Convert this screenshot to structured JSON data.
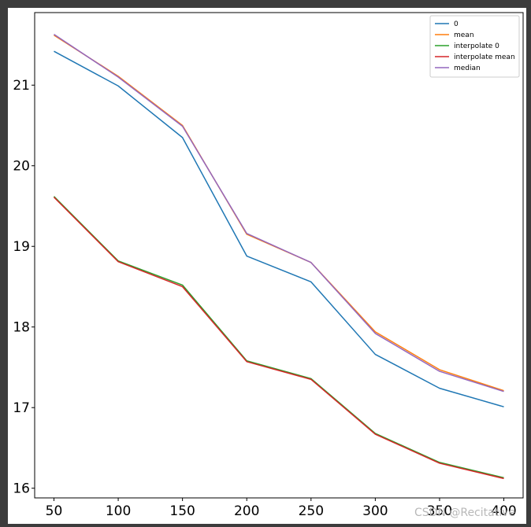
{
  "chart_data": {
    "type": "line",
    "title": "",
    "xlabel": "",
    "ylabel": "",
    "x": [
      50,
      100,
      150,
      200,
      250,
      300,
      350,
      400
    ],
    "xticks": [
      "50",
      "100",
      "150",
      "200",
      "250",
      "300",
      "350",
      "400"
    ],
    "yticks": [
      "16",
      "17",
      "18",
      "19",
      "20",
      "21"
    ],
    "xlim": [
      35,
      415
    ],
    "ylim": [
      15.88,
      21.9
    ],
    "grid": false,
    "legend_position": "top-right",
    "series": [
      {
        "name": "0",
        "color": "#1f77b4",
        "values": [
          21.42,
          20.99,
          20.35,
          18.88,
          18.56,
          17.66,
          17.24,
          17.01
        ]
      },
      {
        "name": "mean",
        "color": "#ff7f0e",
        "values": [
          21.62,
          21.11,
          20.5,
          19.15,
          18.8,
          17.94,
          17.47,
          17.21
        ]
      },
      {
        "name": "interpolate 0",
        "color": "#2ca02c",
        "values": [
          19.62,
          18.82,
          18.52,
          17.58,
          17.36,
          16.68,
          16.32,
          16.13
        ]
      },
      {
        "name": "interpolate mean",
        "color": "#d62728",
        "values": [
          19.61,
          18.81,
          18.5,
          17.57,
          17.35,
          16.67,
          16.31,
          16.12
        ]
      },
      {
        "name": "median",
        "color": "#9467bd",
        "values": [
          21.63,
          21.1,
          20.49,
          19.16,
          18.8,
          17.92,
          17.45,
          17.2
        ]
      }
    ]
  },
  "watermark": "CSDN @Recitative"
}
